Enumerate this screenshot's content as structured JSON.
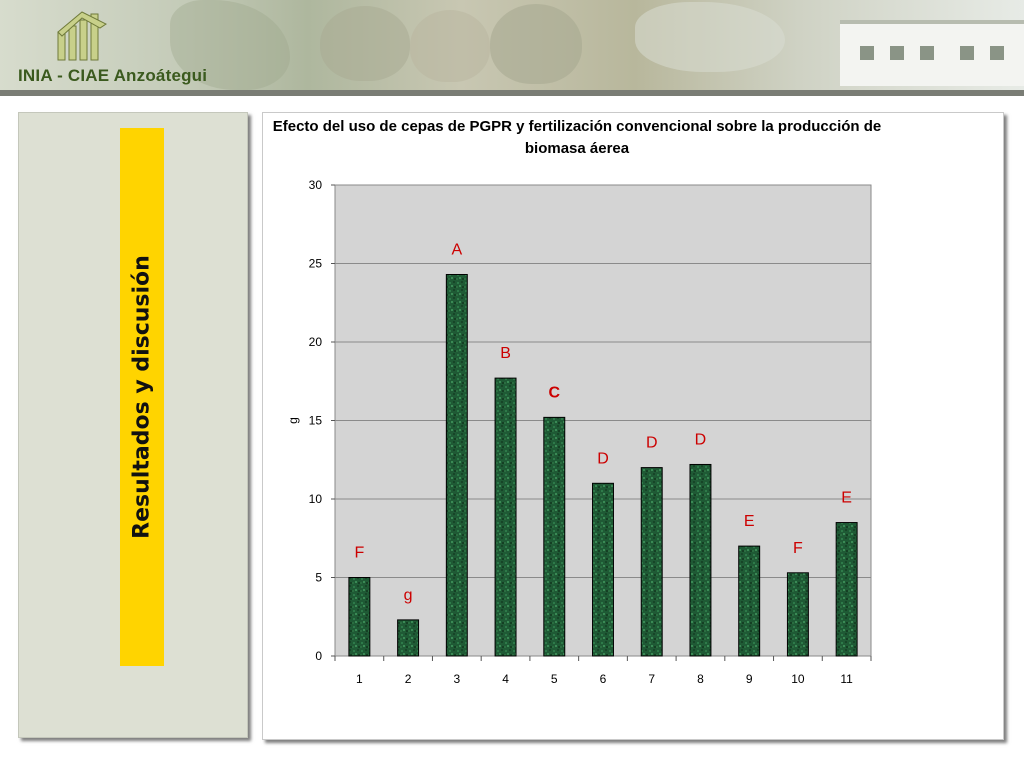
{
  "header": {
    "org_name": "INIA - CIAE Anzoátegui"
  },
  "section": {
    "title": "Resultados y discusión"
  },
  "chart_data": {
    "type": "bar",
    "title": "Efecto del uso de cepas de PGPR y fertilización convencional sobre la producción de biomasa áerea",
    "xlabel": "",
    "ylabel": "g",
    "categories": [
      "1",
      "2",
      "3",
      "4",
      "5",
      "6",
      "7",
      "8",
      "9",
      "10",
      "11"
    ],
    "values": [
      5.0,
      2.3,
      24.3,
      17.7,
      15.2,
      11.0,
      12.0,
      12.2,
      7.0,
      5.3,
      8.5
    ],
    "annotations": [
      "F",
      "g",
      "A",
      "B",
      "C",
      "D",
      "D",
      "D",
      "E",
      "F",
      "E"
    ],
    "yticks": [
      0,
      5,
      10,
      15,
      20,
      25,
      30
    ],
    "ylim": [
      0,
      30
    ],
    "grid": true,
    "legend": "none",
    "colors": {
      "bar": "#1f5a35",
      "bar_border": "#000000",
      "plot_background": "#d4d4d4",
      "annotation": "#cc0000"
    }
  }
}
